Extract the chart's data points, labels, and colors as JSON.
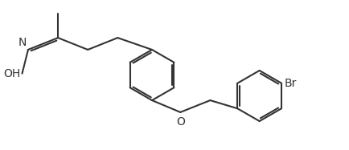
{
  "background_color": "#ffffff",
  "line_color": "#333333",
  "line_width": 1.5,
  "text_color": "#333333",
  "font_size": 9,
  "fig_width": 4.35,
  "fig_height": 1.87,
  "dpi": 100,
  "xlim": [
    0,
    11
  ],
  "ylim": [
    0,
    5
  ]
}
